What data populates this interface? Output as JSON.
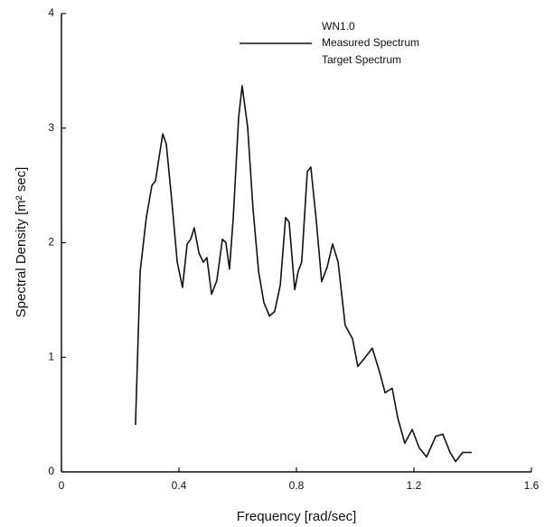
{
  "chart_data": {
    "type": "line",
    "x_label": "Frequency [rad/sec]",
    "y_label": "Spectral Density [m² sec]",
    "legend_title": "WN1.0",
    "xlim": [
      0,
      1.6
    ],
    "xticks": [
      0,
      0.4,
      0.8,
      1.2,
      1.6
    ],
    "ylim": [
      0,
      4
    ],
    "yticks": [
      0,
      1,
      2,
      3,
      4
    ],
    "x": [
      0.252,
      0.268,
      0.289,
      0.308,
      0.32,
      0.332,
      0.345,
      0.357,
      0.375,
      0.394,
      0.412,
      0.428,
      0.44,
      0.452,
      0.468,
      0.483,
      0.495,
      0.511,
      0.529,
      0.548,
      0.56,
      0.572,
      0.585,
      0.603,
      0.615,
      0.634,
      0.652,
      0.671,
      0.689,
      0.708,
      0.726,
      0.745,
      0.763,
      0.775,
      0.794,
      0.806,
      0.818,
      0.837,
      0.849,
      0.868,
      0.886,
      0.905,
      0.923,
      0.942,
      0.966,
      0.991,
      1.009,
      1.034,
      1.058,
      1.083,
      1.102,
      1.126,
      1.145,
      1.169,
      1.194,
      1.218,
      1.243,
      1.274,
      1.298,
      1.323,
      1.342,
      1.366,
      1.397
    ],
    "series": [
      {
        "name": "Measured Spectrum",
        "color": "#111111",
        "values": [
          0.41,
          1.75,
          2.22,
          2.5,
          2.54,
          2.74,
          2.95,
          2.86,
          2.38,
          1.83,
          1.61,
          1.99,
          2.03,
          2.13,
          1.91,
          1.83,
          1.87,
          1.55,
          1.67,
          2.03,
          2.0,
          1.77,
          2.22,
          3.09,
          3.37,
          3.01,
          2.3,
          1.75,
          1.48,
          1.36,
          1.4,
          1.63,
          2.22,
          2.18,
          1.59,
          1.75,
          1.83,
          2.62,
          2.66,
          2.18,
          1.66,
          1.79,
          1.99,
          1.83,
          1.28,
          1.16,
          0.92,
          1.0,
          1.08,
          0.87,
          0.69,
          0.73,
          0.47,
          0.25,
          0.37,
          0.21,
          0.13,
          0.31,
          0.33,
          0.17,
          0.09,
          0.17,
          0.17
        ]
      },
      {
        "name": "Target Spectrum",
        "color": "#111111",
        "values": [
          null,
          null,
          null,
          null,
          null,
          null,
          null,
          null,
          null,
          null,
          null,
          null,
          null,
          null,
          null,
          null,
          null,
          null,
          null,
          null,
          null,
          null,
          null,
          null,
          null,
          null,
          null,
          null,
          null,
          null,
          null,
          null,
          null,
          null,
          null,
          null,
          null,
          null,
          null,
          null,
          null,
          null,
          null,
          null,
          null,
          null,
          null,
          null,
          null,
          null,
          null,
          null,
          null,
          null,
          null,
          null,
          null,
          null,
          null,
          null,
          null,
          null,
          null
        ]
      }
    ]
  }
}
